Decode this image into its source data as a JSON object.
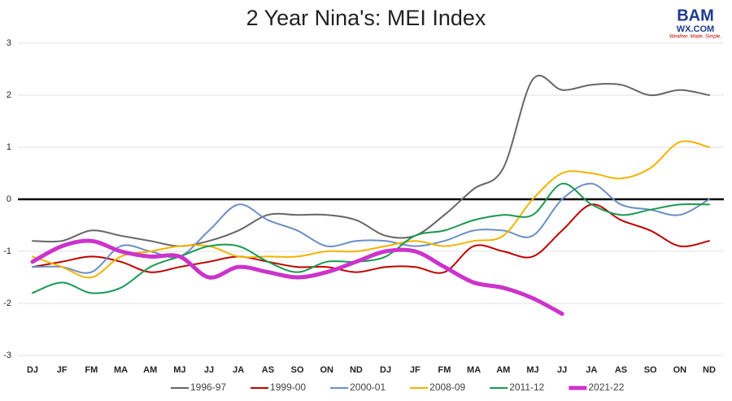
{
  "chart_data": {
    "type": "line",
    "title": "2 Year Nina's: MEI Index",
    "categories": [
      "DJ",
      "JF",
      "FM",
      "MA",
      "AM",
      "MJ",
      "JJ",
      "JA",
      "AS",
      "SO",
      "ON",
      "ND",
      "DJ",
      "JF",
      "FM",
      "MA",
      "AM",
      "MJ",
      "JJ",
      "JA",
      "AS",
      "SO",
      "ON",
      "ND"
    ],
    "series": [
      {
        "name": "1996-97",
        "color": "#666666",
        "width": 2,
        "values": [
          -0.8,
          -0.8,
          -0.6,
          -0.7,
          -0.8,
          -0.9,
          -0.8,
          -0.6,
          -0.3,
          -0.3,
          -0.3,
          -0.4,
          -0.7,
          -0.7,
          -0.3,
          0.2,
          0.6,
          2.3,
          2.1,
          2.2,
          2.2,
          2.0,
          2.1,
          2.0
        ]
      },
      {
        "name": "1999-00",
        "color": "#c00000",
        "width": 2,
        "values": [
          -1.3,
          -1.2,
          -1.1,
          -1.2,
          -1.4,
          -1.3,
          -1.2,
          -1.1,
          -1.2,
          -1.3,
          -1.3,
          -1.4,
          -1.3,
          -1.3,
          -1.4,
          -0.9,
          -1.0,
          -1.1,
          -0.6,
          -0.1,
          -0.4,
          -0.6,
          -0.9,
          -0.8
        ]
      },
      {
        "name": "2000-01",
        "color": "#6a8fc7",
        "width": 2,
        "values": [
          -1.3,
          -1.3,
          -1.4,
          -0.9,
          -1.0,
          -1.1,
          -0.6,
          -0.1,
          -0.4,
          -0.6,
          -0.9,
          -0.8,
          -0.8,
          -0.9,
          -0.8,
          -0.6,
          -0.6,
          -0.7,
          0.0,
          0.3,
          -0.1,
          -0.2,
          -0.3,
          0.0
        ]
      },
      {
        "name": "2008-09",
        "color": "#f0b400",
        "width": 2,
        "values": [
          -1.1,
          -1.3,
          -1.5,
          -1.1,
          -1.0,
          -0.9,
          -0.9,
          -1.1,
          -1.1,
          -1.1,
          -1.0,
          -1.0,
          -0.9,
          -0.8,
          -0.9,
          -0.8,
          -0.7,
          0.0,
          0.5,
          0.5,
          0.4,
          0.6,
          1.1,
          1.0
        ]
      },
      {
        "name": "2011-12",
        "color": "#1a9a50",
        "width": 2,
        "values": [
          -1.8,
          -1.6,
          -1.8,
          -1.7,
          -1.3,
          -1.1,
          -0.9,
          -0.9,
          -1.2,
          -1.4,
          -1.2,
          -1.2,
          -1.1,
          -0.7,
          -0.6,
          -0.4,
          -0.3,
          -0.3,
          0.3,
          -0.1,
          -0.3,
          -0.2,
          -0.1,
          -0.1
        ]
      },
      {
        "name": "2021-22",
        "color": "#cc33cc",
        "width": 5,
        "values": [
          -1.2,
          -0.9,
          -0.8,
          -1.0,
          -1.1,
          -1.1,
          -1.5,
          -1.3,
          -1.4,
          -1.5,
          -1.4,
          -1.2,
          -1.0,
          -1.0,
          -1.3,
          -1.6,
          -1.7,
          -1.9,
          -2.2,
          null,
          null,
          null,
          null,
          null
        ]
      }
    ],
    "ylim": [
      -3,
      3
    ],
    "yticks": [
      -3,
      -2,
      -1,
      0,
      1,
      2,
      3
    ],
    "grid": true
  },
  "logo": {
    "brand": "BAM",
    "site": "WX.COM",
    "tagline": "Weather. Made. Simple."
  }
}
